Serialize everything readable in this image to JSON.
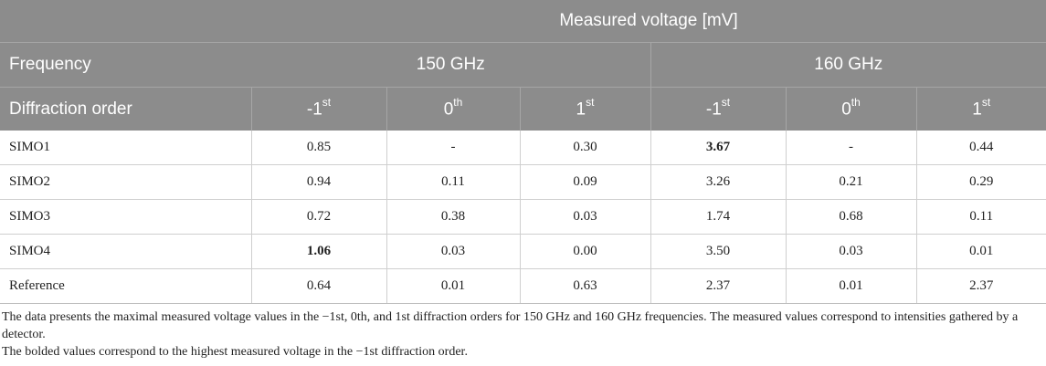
{
  "header": {
    "group_title": "Measured voltage [mV]",
    "frequency_label": "Frequency",
    "freq_150": "150 GHz",
    "freq_160": "160 GHz",
    "order_label": "Diffraction order",
    "orders": [
      {
        "base": "-1",
        "sup": "st"
      },
      {
        "base": "0",
        "sup": "th"
      },
      {
        "base": "1",
        "sup": "st"
      },
      {
        "base": "-1",
        "sup": "st"
      },
      {
        "base": "0",
        "sup": "th"
      },
      {
        "base": "1",
        "sup": "st"
      }
    ]
  },
  "rows": [
    {
      "label": "SIMO1",
      "values": [
        "0.85",
        "-",
        "0.30",
        "3.67",
        "-",
        "0.44"
      ]
    },
    {
      "label": "SIMO2",
      "values": [
        "0.94",
        "0.11",
        "0.09",
        "3.26",
        "0.21",
        "0.29"
      ]
    },
    {
      "label": "SIMO3",
      "values": [
        "0.72",
        "0.38",
        "0.03",
        "1.74",
        "0.68",
        "0.11"
      ]
    },
    {
      "label": "SIMO4",
      "values": [
        "1.06",
        "0.03",
        "0.00",
        "3.50",
        "0.03",
        "0.01"
      ]
    },
    {
      "label": "Reference",
      "values": [
        "0.64",
        "0.01",
        "0.63",
        "2.37",
        "0.01",
        "2.37"
      ]
    }
  ],
  "notes": {
    "note1": "The data presents the maximal measured voltage values in the −1st, 0th, and 1st diffraction orders for 150 GHz and 160 GHz frequencies. The measured values correspond to intensities gathered by a detector.",
    "note2": "The bolded values correspond to the highest measured voltage in the −1st diffraction order."
  }
}
